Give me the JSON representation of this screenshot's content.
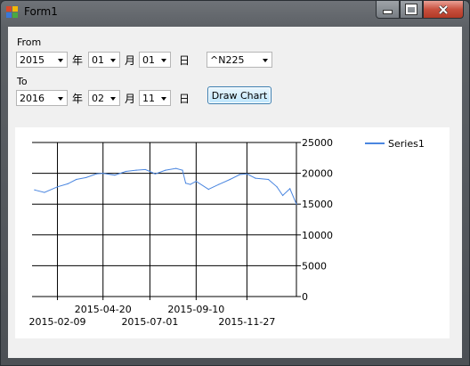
{
  "window": {
    "title": "Form1",
    "minimize_icon": "minimize-icon",
    "maximize_icon": "maximize-icon",
    "close_icon": "close-icon"
  },
  "form": {
    "from_label": "From",
    "to_label": "To",
    "year_char": "年",
    "month_char": "月",
    "day_char": "日",
    "from_year": "2015",
    "from_month": "01",
    "from_day": "01",
    "to_year": "2016",
    "to_month": "02",
    "to_day": "11",
    "symbol": "^N225",
    "draw_button": "Draw Chart"
  },
  "chart_data": {
    "type": "line",
    "series": [
      {
        "name": "Series1",
        "color": "#4a86e0",
        "x": [
          "2015-01-05",
          "2015-01-20",
          "2015-02-09",
          "2015-02-25",
          "2015-03-10",
          "2015-03-25",
          "2015-04-10",
          "2015-04-20",
          "2015-05-08",
          "2015-05-25",
          "2015-06-10",
          "2015-06-24",
          "2015-07-01",
          "2015-07-09",
          "2015-07-25",
          "2015-08-10",
          "2015-08-20",
          "2015-08-25",
          "2015-09-01",
          "2015-09-10",
          "2015-09-29",
          "2015-10-15",
          "2015-11-01",
          "2015-11-16",
          "2015-11-27",
          "2015-12-10",
          "2015-12-30",
          "2016-01-12",
          "2016-01-21",
          "2016-02-01",
          "2016-02-11"
        ],
        "values": [
          17300,
          16900,
          17800,
          18300,
          19000,
          19300,
          19900,
          20000,
          19700,
          20300,
          20500,
          20600,
          20300,
          19900,
          20500,
          20800,
          20500,
          18400,
          18200,
          18700,
          17400,
          18200,
          19000,
          19800,
          19900,
          19200,
          19000,
          17800,
          16400,
          17500,
          15000
        ]
      }
    ],
    "x_ticks_row1": [
      "2015-04-20",
      "2015-09-10"
    ],
    "x_ticks_row2": [
      "2015-02-09",
      "2015-07-01",
      "2015-11-27"
    ],
    "y_ticks": [
      "0",
      "5000",
      "10000",
      "15000",
      "20000",
      "25000"
    ],
    "ylim": [
      0,
      25000
    ],
    "xlim": [
      "2015-01-01",
      "2016-02-11"
    ],
    "y_axis_side": "right",
    "grid": true,
    "legend": "top-right"
  }
}
